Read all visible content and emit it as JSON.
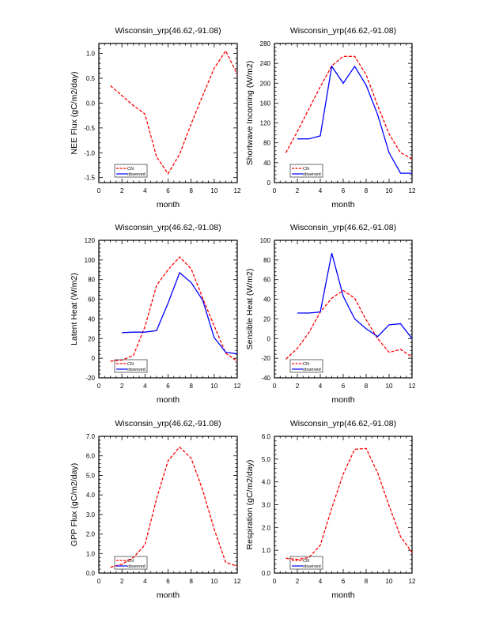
{
  "legend": {
    "model_label": "CN",
    "obs_label": "observed"
  },
  "colors": {
    "model": "#ff0000",
    "observed": "#0000ff",
    "axis": "#000000"
  },
  "chart_data": [
    {
      "type": "line",
      "title": "Wisconsin_yrp(46.62,-91.08)",
      "xlabel": "month",
      "ylabel": "NEE Flux (gC/m2/day)",
      "xlim": [
        0,
        12
      ],
      "ylim": [
        -1.6,
        1.2
      ],
      "xticks": [
        0,
        2,
        4,
        6,
        8,
        10,
        12
      ],
      "xtick_labels": [
        "0",
        "2",
        "4",
        "6",
        "8",
        "10",
        "12"
      ],
      "yticks": [
        -1.5,
        -1.0,
        -0.5,
        0.0,
        0.5,
        1.0
      ],
      "ytick_labels": [
        "-1.5",
        "-1.0",
        "-0.5",
        "0.0",
        "0.5",
        "1.0"
      ],
      "legend": "bottom-left",
      "series": [
        {
          "name": "CN",
          "x": [
            1,
            2,
            3,
            4,
            5,
            6,
            7,
            8,
            9,
            10,
            11,
            12
          ],
          "values": [
            0.35,
            0.15,
            -0.05,
            -0.22,
            -1.08,
            -1.42,
            -1.03,
            -0.42,
            0.15,
            0.7,
            1.05,
            0.58
          ]
        },
        {
          "name": "observed",
          "x": [],
          "values": []
        }
      ]
    },
    {
      "type": "line",
      "title": "Wisconsin_yrp(46.62,-91.08)",
      "xlabel": "month",
      "ylabel": "Shortwave Incoming (W/m2)",
      "xlim": [
        0,
        12
      ],
      "ylim": [
        0,
        280
      ],
      "xticks": [
        0,
        2,
        4,
        6,
        8,
        10,
        12
      ],
      "xtick_labels": [
        "0",
        "2",
        "4",
        "6",
        "8",
        "10",
        "12"
      ],
      "yticks": [
        0,
        40,
        80,
        120,
        160,
        200,
        240,
        280
      ],
      "ytick_labels": [
        "0",
        "40",
        "80",
        "120",
        "160",
        "200",
        "240",
        "280"
      ],
      "legend": "bottom-left",
      "series": [
        {
          "name": "CN",
          "x": [
            1,
            2,
            3,
            4,
            5,
            6,
            7,
            8,
            9,
            10,
            11,
            12
          ],
          "values": [
            60,
            103,
            148,
            193,
            235,
            254,
            254,
            217,
            155,
            98,
            60,
            48
          ]
        },
        {
          "name": "observed",
          "x": [
            2,
            3,
            4,
            5,
            6,
            7,
            8,
            9,
            10,
            11,
            12
          ],
          "values": [
            88,
            88,
            94,
            234,
            200,
            234,
            196,
            137,
            60,
            19,
            19
          ]
        }
      ]
    },
    {
      "type": "line",
      "title": "Wisconsin_yrp(46.62,-91.08)",
      "xlabel": "month",
      "ylabel": "Latent Heat (W/m2)",
      "xlim": [
        0,
        12
      ],
      "ylim": [
        -20,
        120
      ],
      "xticks": [
        0,
        2,
        4,
        6,
        8,
        10,
        12
      ],
      "xtick_labels": [
        "0",
        "2",
        "4",
        "6",
        "8",
        "10",
        "12"
      ],
      "yticks": [
        -20,
        0,
        20,
        40,
        60,
        80,
        100,
        120
      ],
      "ytick_labels": [
        "-20",
        "0",
        "20",
        "40",
        "60",
        "80",
        "100",
        "120"
      ],
      "legend": "bottom-left",
      "series": [
        {
          "name": "CN",
          "x": [
            1,
            2,
            3,
            4,
            5,
            6,
            7,
            8,
            9,
            10,
            11,
            12
          ],
          "values": [
            -3,
            -2,
            3,
            32,
            74,
            90,
            103,
            91,
            61,
            33,
            5,
            -3
          ]
        },
        {
          "name": "observed",
          "x": [
            2,
            3,
            4,
            5,
            6,
            7,
            8,
            9,
            10,
            11,
            12
          ],
          "values": [
            26,
            26.5,
            26.5,
            28,
            56,
            87,
            77,
            59,
            21,
            6,
            4.5
          ]
        }
      ]
    },
    {
      "type": "line",
      "title": "Wisconsin_yrp(46.62,-91.08)",
      "xlabel": "month",
      "ylabel": "Sensible Heat (W/m2)",
      "xlim": [
        0,
        12
      ],
      "ylim": [
        -40,
        100
      ],
      "xticks": [
        0,
        2,
        4,
        6,
        8,
        10,
        12
      ],
      "xtick_labels": [
        "0",
        "2",
        "4",
        "6",
        "8",
        "10",
        "12"
      ],
      "yticks": [
        -40,
        -20,
        0,
        20,
        40,
        60,
        80,
        100
      ],
      "ytick_labels": [
        "-40",
        "-20",
        "0",
        "20",
        "40",
        "60",
        "80",
        "100"
      ],
      "legend": "bottom-left",
      "series": [
        {
          "name": "CN",
          "x": [
            1,
            2,
            3,
            4,
            5,
            6,
            7,
            8,
            9,
            10,
            11,
            12
          ],
          "values": [
            -21,
            -10,
            6,
            27,
            41,
            49,
            41,
            19,
            0,
            -14,
            -11,
            -19
          ]
        },
        {
          "name": "observed",
          "x": [
            2,
            3,
            4,
            5,
            6,
            7,
            8,
            9,
            10,
            11,
            12
          ],
          "values": [
            26,
            26,
            27,
            87,
            43,
            20,
            10,
            2,
            14,
            15,
            0
          ]
        }
      ]
    },
    {
      "type": "line",
      "title": "Wisconsin_yrp(46.62,-91.08)",
      "xlabel": "month",
      "ylabel": "GPP Flux (gC/m2/day)",
      "xlim": [
        0,
        12
      ],
      "ylim": [
        0,
        7
      ],
      "xticks": [
        0,
        2,
        4,
        6,
        8,
        10,
        12
      ],
      "xtick_labels": [
        "0",
        "2",
        "4",
        "6",
        "8",
        "10",
        "12"
      ],
      "yticks": [
        0,
        1,
        2,
        3,
        4,
        5,
        6,
        7
      ],
      "ytick_labels": [
        "0.0",
        "1.0",
        "2.0",
        "3.0",
        "4.0",
        "5.0",
        "6.0",
        "7.0"
      ],
      "legend": "bottom-left",
      "series": [
        {
          "name": "CN",
          "x": [
            1,
            2,
            3,
            4,
            5,
            6,
            7,
            8,
            9,
            10,
            11,
            12
          ],
          "values": [
            0.3,
            0.45,
            0.8,
            1.45,
            3.8,
            5.75,
            6.45,
            5.88,
            4.25,
            2.25,
            0.55,
            0.35
          ]
        },
        {
          "name": "observed",
          "x": [],
          "values": []
        }
      ]
    },
    {
      "type": "line",
      "title": "Wisconsin_yrp(46.62,-91.08)",
      "xlabel": "month",
      "ylabel": "Respiration (gC/m2/day)",
      "xlim": [
        0,
        12
      ],
      "ylim": [
        0,
        6
      ],
      "xticks": [
        0,
        2,
        4,
        6,
        8,
        10,
        12
      ],
      "xtick_labels": [
        "0",
        "2",
        "4",
        "6",
        "8",
        "10",
        "12"
      ],
      "yticks": [
        0,
        1,
        2,
        3,
        4,
        5,
        6
      ],
      "ytick_labels": [
        "0.0",
        "1.0",
        "2.0",
        "3.0",
        "4.0",
        "5.0",
        "6.0"
      ],
      "legend": "bottom-left",
      "series": [
        {
          "name": "CN",
          "x": [
            1,
            2,
            3,
            4,
            5,
            6,
            7,
            8,
            9,
            10,
            11,
            12
          ],
          "values": [
            0.65,
            0.6,
            0.68,
            1.22,
            2.85,
            4.35,
            5.43,
            5.47,
            4.4,
            2.95,
            1.6,
            0.9
          ]
        },
        {
          "name": "observed",
          "x": [],
          "values": []
        }
      ]
    }
  ]
}
